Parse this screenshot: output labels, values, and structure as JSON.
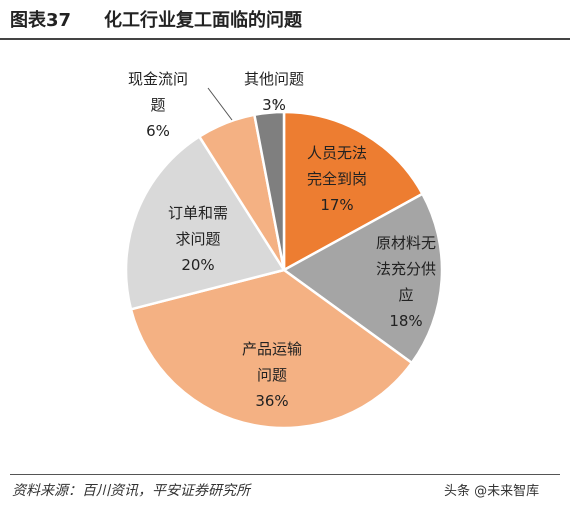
{
  "header": {
    "figure_label": "图表37",
    "title": "化工行业复工面临的问题"
  },
  "chart_data": {
    "type": "pie",
    "title": "化工行业复工面临的问题",
    "slices": [
      {
        "label_lines": [
          "人员无法",
          "完全到岗"
        ],
        "value": 17,
        "pct_text": "17%",
        "color": "#ED7D31"
      },
      {
        "label_lines": [
          "原材料无",
          "法充分供",
          "应"
        ],
        "value": 18,
        "pct_text": "18%",
        "color": "#A5A5A5"
      },
      {
        "label_lines": [
          "产品运输",
          "问题"
        ],
        "value": 36,
        "pct_text": "36%",
        "color": "#F4B183"
      },
      {
        "label_lines": [
          "订单和需",
          "求问题"
        ],
        "value": 20,
        "pct_text": "20%",
        "color": "#D9D9D9"
      },
      {
        "label_lines": [
          "现金流问",
          "题"
        ],
        "value": 6,
        "pct_text": "6%",
        "color": "#F4B183"
      },
      {
        "label_lines": [
          "其他问题"
        ],
        "value": 3,
        "pct_text": "3%",
        "color": "#7F7F7F"
      }
    ]
  },
  "footer": {
    "source": "资料来源：百川资讯，平安证券研究所",
    "watermark": "头条 @未来智库"
  }
}
